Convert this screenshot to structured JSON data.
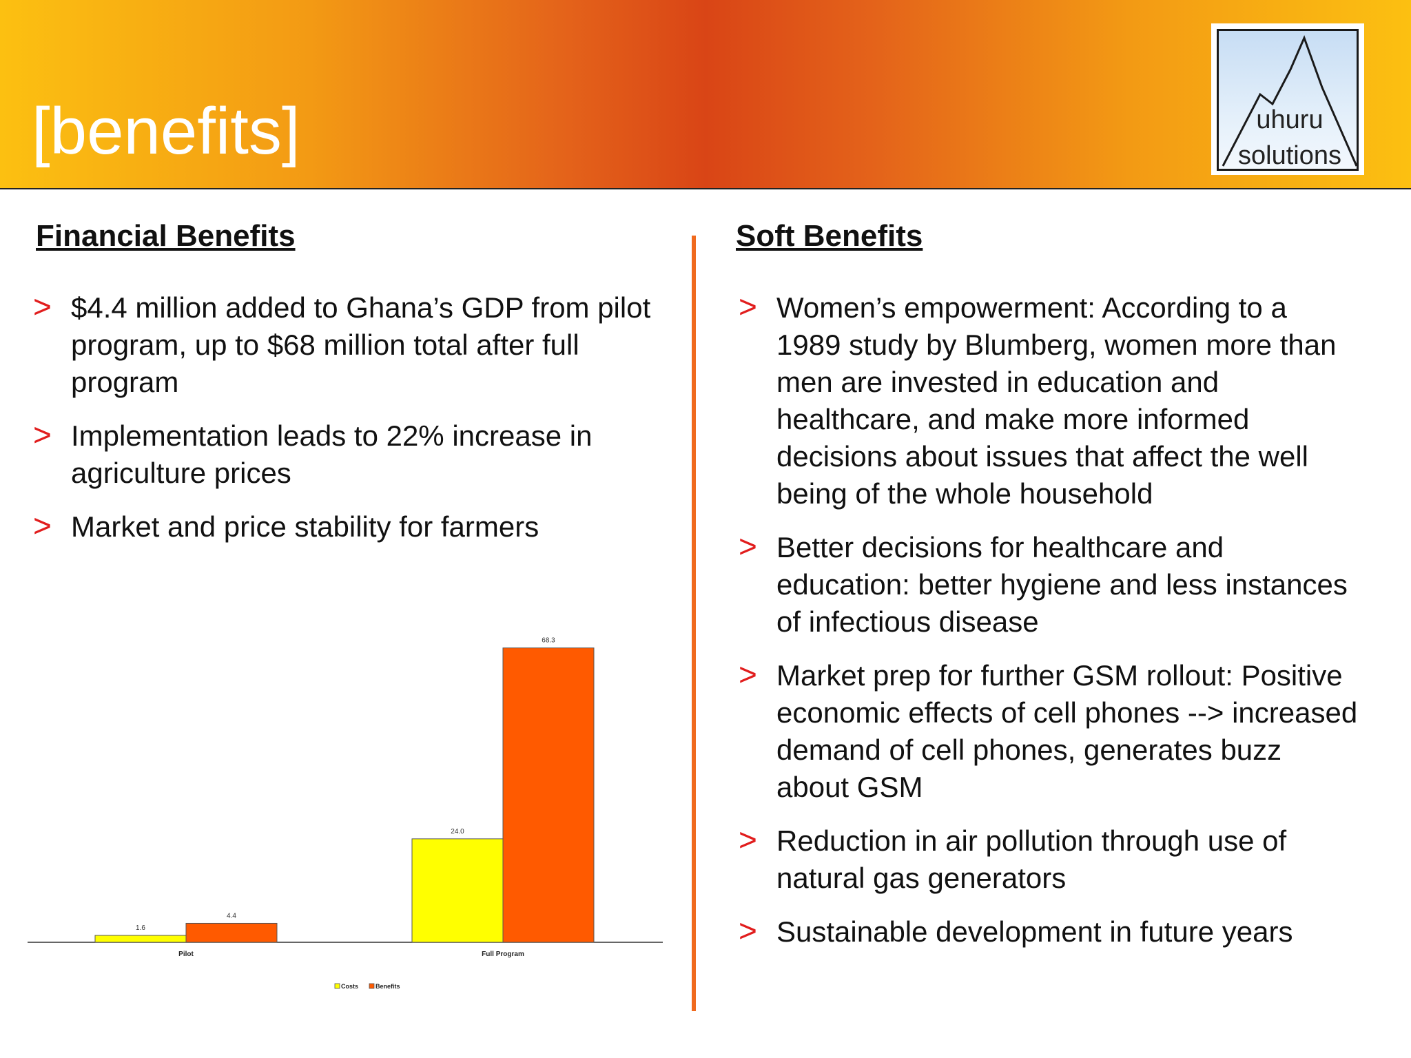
{
  "header": {
    "title": "[benefits]",
    "logo_line1": "uhuru",
    "logo_line2": "solutions"
  },
  "left": {
    "heading": "Financial Benefits",
    "bullets": [
      "$4.4 million added to Ghana’s GDP from pilot program, up to $68 million total after full program",
      "Implementation leads to 22% increase in agriculture prices",
      "Market and price stability for farmers"
    ]
  },
  "right": {
    "heading": "Soft Benefits",
    "bullets": [
      "Women’s empowerment: According to a 1989 study by Blumberg, women more than men are invested in education and healthcare, and make more informed decisions about issues that affect the well being of the whole household",
      "Better decisions for healthcare and education: better hygiene and less instances of infectious disease",
      "Market prep for further GSM rollout: Positive economic effects of cell phones --> increased demand of cell phones, generates buzz about GSM",
      "Reduction in air pollution through use of natural gas generators",
      "Sustainable development in future years"
    ]
  },
  "bullet_marker": ">",
  "colors": {
    "accent_orange": "#f06a1e",
    "bullet_red": "#e11d1d",
    "costs": "#ffff00",
    "benefits": "#ff5a00"
  },
  "chart_data": {
    "type": "bar",
    "categories": [
      "Pilot",
      "Full Program"
    ],
    "series": [
      {
        "name": "Costs",
        "values": [
          1.6,
          24.0
        ],
        "labels": [
          "1.6",
          "24.0"
        ],
        "color": "#ffff00"
      },
      {
        "name": "Benefits",
        "values": [
          4.4,
          68.3
        ],
        "labels": [
          "4.4",
          "68.3"
        ],
        "color": "#ff5a00"
      }
    ],
    "ylim": [
      0,
      70
    ],
    "grid": false,
    "legend": "bottom-center"
  }
}
